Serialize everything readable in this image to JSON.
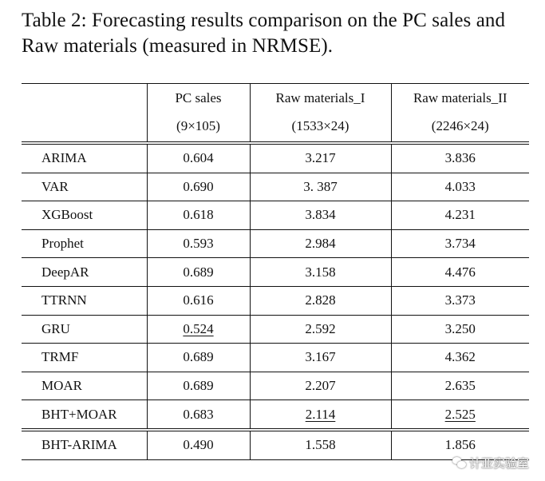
{
  "caption": "Table 2: Forecasting results comparison on the PC sales and Raw materials (measured in NRMSE).",
  "header": {
    "columns": [
      {
        "name": "PC sales",
        "size": "(9×105)"
      },
      {
        "name": "Raw materials_I",
        "size": "(1533×24)"
      },
      {
        "name": "Raw materials_II",
        "size": "(2246×24)"
      }
    ]
  },
  "rows": [
    {
      "method": "ARIMA",
      "values": [
        "0.604",
        "3.217",
        "3.836"
      ]
    },
    {
      "method": "VAR",
      "values": [
        "0.690",
        "3. 387",
        "4.033"
      ]
    },
    {
      "method": "XGBoost",
      "values": [
        "0.618",
        "3.834",
        "4.231"
      ]
    },
    {
      "method": "Prophet",
      "values": [
        "0.593",
        "2.984",
        "3.734"
      ]
    },
    {
      "method": "DeepAR",
      "values": [
        "0.689",
        "3.158",
        "4.476"
      ]
    },
    {
      "method": "TTRNN",
      "values": [
        "0.616",
        "2.828",
        "3.373"
      ]
    },
    {
      "method": "GRU",
      "values": [
        "0.524",
        "2.592",
        "3.250"
      ]
    },
    {
      "method": "TRMF",
      "values": [
        "0.689",
        "3.167",
        "4.362"
      ]
    },
    {
      "method": "MOAR",
      "values": [
        "0.689",
        "2.207",
        "2.635"
      ]
    },
    {
      "method": "BHT+MOAR",
      "values": [
        "0.683",
        "2.114",
        "2.525"
      ]
    }
  ],
  "final_row": {
    "method": "BHT-ARIMA",
    "values": [
      "0.490",
      "1.558",
      "1.856"
    ]
  },
  "watermark": "计亚实验室"
}
